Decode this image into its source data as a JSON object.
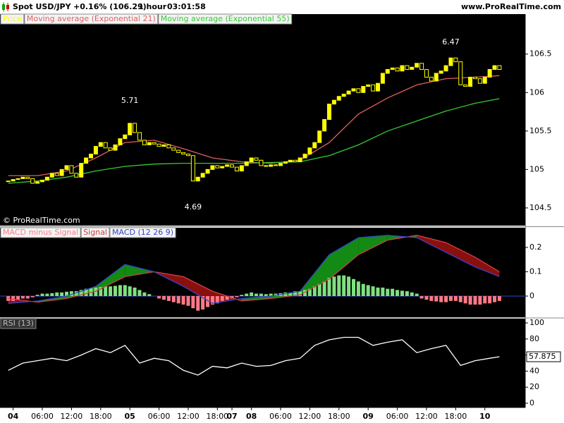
{
  "header": {
    "symbol": "Spot USD/JPY",
    "change": "+0.16% (106.29)",
    "period": "1 hour",
    "time": "03:01:58",
    "site": "www.ProRealTime.com"
  },
  "watermark": "© ProRealTime.com",
  "chart_data": [
    {
      "type": "candlestick",
      "series": [
        {
          "name": "Price",
          "color": "#ffff00",
          "values": [
            104.85,
            104.87,
            104.88,
            104.9,
            104.88,
            104.82,
            104.84,
            104.86,
            104.9,
            104.95,
            104.92,
            105.0,
            105.05,
            104.95,
            104.9,
            105.08,
            105.15,
            105.2,
            105.3,
            105.35,
            105.28,
            105.25,
            105.32,
            105.4,
            105.45,
            105.6,
            105.48,
            105.38,
            105.32,
            105.35,
            105.33,
            105.3,
            105.32,
            105.28,
            105.25,
            105.22,
            105.2,
            105.18,
            104.85,
            104.9,
            104.95,
            105.0,
            105.05,
            105.02,
            105.04,
            105.06,
            105.03,
            104.98,
            105.05,
            105.1,
            105.15,
            105.12,
            105.05,
            105.04,
            105.06,
            105.05,
            105.08,
            105.1,
            105.12,
            105.1,
            105.15,
            105.2,
            105.28,
            105.35,
            105.5,
            105.65,
            105.85,
            105.9,
            105.95,
            105.98,
            106.02,
            106.05,
            106.0,
            106.08,
            106.1,
            106.02,
            106.12,
            106.25,
            106.3,
            106.32,
            106.28,
            106.35,
            106.3,
            106.33,
            106.38,
            106.3,
            106.2,
            106.15,
            106.25,
            106.28,
            106.35,
            106.45,
            106.4,
            106.1,
            106.08,
            106.2,
            106.18,
            106.12,
            106.2,
            106.3,
            106.35,
            106.3
          ]
        },
        {
          "name": "Moving average (Exponential 21)",
          "color": "#e06060",
          "x": [
            0,
            6,
            12,
            18,
            24,
            30,
            36,
            42,
            48,
            54,
            60,
            66,
            72,
            78,
            84,
            90,
            96,
            101
          ],
          "values": [
            104.92,
            104.92,
            104.98,
            105.15,
            105.35,
            105.38,
            105.27,
            105.15,
            105.1,
            105.08,
            105.12,
            105.35,
            105.72,
            105.93,
            106.1,
            106.18,
            106.2,
            106.22
          ]
        },
        {
          "name": "Moving average (Exponential 55)",
          "color": "#33cc33",
          "x": [
            0,
            6,
            12,
            18,
            24,
            30,
            36,
            42,
            48,
            54,
            60,
            66,
            72,
            78,
            84,
            90,
            96,
            101
          ],
          "values": [
            104.82,
            104.85,
            104.9,
            104.98,
            105.04,
            105.07,
            105.08,
            105.08,
            105.08,
            105.09,
            105.1,
            105.18,
            105.32,
            105.5,
            105.63,
            105.76,
            105.86,
            105.92
          ]
        }
      ],
      "annotations": [
        {
          "text": "5.71",
          "x": 25,
          "y": 105.71,
          "position": "above"
        },
        {
          "text": "4.69",
          "x": 38,
          "y": 104.69,
          "position": "below"
        },
        {
          "text": "6.47",
          "x": 91,
          "y": 106.47,
          "position": "above"
        }
      ],
      "xlim": [
        -1.7,
        106.3
      ],
      "ylim": [
        104.27,
        107.02
      ],
      "yticks": [
        104.5,
        105,
        105.5,
        106,
        106.5
      ]
    },
    {
      "type": "macd",
      "series": [
        {
          "name": "MACD minus Signal",
          "style": "bar",
          "color": "#80e080",
          "negative_color": "#ff7a85",
          "values": [
            -0.02,
            -0.02,
            -0.015,
            -0.01,
            -0.01,
            -0.005,
            0.005,
            0.01,
            0.01,
            0.012,
            0.015,
            0.015,
            0.018,
            0.02,
            0.02,
            0.025,
            0.03,
            0.032,
            0.035,
            0.037,
            0.04,
            0.04,
            0.042,
            0.045,
            0.045,
            0.04,
            0.035,
            0.025,
            0.015,
            0.008,
            0.0,
            -0.01,
            -0.015,
            -0.02,
            -0.025,
            -0.03,
            -0.035,
            -0.04,
            -0.05,
            -0.06,
            -0.055,
            -0.045,
            -0.035,
            -0.03,
            -0.02,
            -0.015,
            -0.01,
            -0.005,
            0.005,
            0.01,
            0.015,
            0.01,
            0.01,
            0.008,
            0.01,
            0.01,
            0.012,
            0.015,
            0.015,
            0.02,
            0.02,
            0.025,
            0.03,
            0.04,
            0.05,
            0.06,
            0.075,
            0.08,
            0.085,
            0.085,
            0.08,
            0.07,
            0.06,
            0.05,
            0.045,
            0.04,
            0.035,
            0.035,
            0.03,
            0.03,
            0.025,
            0.022,
            0.02,
            0.015,
            0.01,
            -0.01,
            -0.015,
            -0.02,
            -0.022,
            -0.025,
            -0.025,
            -0.02,
            -0.02,
            -0.025,
            -0.03,
            -0.035,
            -0.035,
            -0.035,
            -0.03,
            -0.03,
            -0.025,
            -0.02
          ]
        },
        {
          "name": "Signal",
          "style": "line",
          "color": "#d04040",
          "x": [
            0,
            6,
            12,
            18,
            24,
            30,
            36,
            42,
            48,
            54,
            60,
            66,
            72,
            78,
            84,
            90,
            96,
            101
          ],
          "values": [
            -0.01,
            -0.025,
            -0.01,
            0.02,
            0.08,
            0.1,
            0.08,
            0.02,
            -0.02,
            -0.01,
            0.005,
            0.07,
            0.17,
            0.23,
            0.25,
            0.22,
            0.16,
            0.1
          ]
        },
        {
          "name": "MACD (12 26 9)",
          "style": "line",
          "color": "#3344cc",
          "x": [
            0,
            6,
            12,
            18,
            24,
            30,
            36,
            42,
            48,
            54,
            60,
            66,
            72,
            78,
            84,
            90,
            96,
            101
          ],
          "values": [
            -0.03,
            -0.02,
            0.0,
            0.04,
            0.13,
            0.1,
            0.04,
            -0.03,
            -0.01,
            0.0,
            0.02,
            0.17,
            0.24,
            0.25,
            0.24,
            0.18,
            0.12,
            0.08
          ]
        }
      ],
      "fill_up": "#138a13",
      "fill_down": "#8a1010",
      "zero_line_color": "#3344cc",
      "xlim": [
        -1.7,
        106.3
      ],
      "ylim": [
        -0.087,
        0.281
      ],
      "yticks": [
        0,
        0.1,
        0.2
      ]
    },
    {
      "type": "line",
      "series": [
        {
          "name": "RSI (13)",
          "color": "#ffffff",
          "x": [
            0,
            3,
            6,
            9,
            12,
            15,
            18,
            21,
            24,
            27,
            30,
            33,
            36,
            39,
            42,
            45,
            48,
            51,
            54,
            57,
            60,
            63,
            66,
            69,
            72,
            75,
            78,
            81,
            84,
            87,
            90,
            93,
            96,
            99,
            101
          ],
          "values": [
            41,
            50,
            53,
            56,
            53,
            60,
            68,
            63,
            72,
            50,
            56,
            53,
            41,
            35,
            46,
            44,
            50,
            46,
            47,
            53,
            56,
            72,
            79,
            82,
            82,
            72,
            76,
            79,
            63,
            68,
            72,
            47,
            53,
            56,
            57.875
          ]
        }
      ],
      "last_value_label": true,
      "xlim": [
        -1.7,
        106.3
      ],
      "ylim": [
        -5.3,
        105.3
      ],
      "yticks": [
        0,
        20,
        40,
        60,
        80,
        100
      ],
      "xticks": [
        {
          "value": 1,
          "label": "04"
        },
        {
          "value": 7,
          "label": "06:00"
        },
        {
          "value": 13,
          "label": "12:00"
        },
        {
          "value": 19,
          "label": "18:00"
        },
        {
          "value": 25,
          "label": "05"
        },
        {
          "value": 31,
          "label": "06:00"
        },
        {
          "value": 37,
          "label": "12:00"
        },
        {
          "value": 43,
          "label": "18:00"
        },
        {
          "value": 46,
          "label": "07"
        },
        {
          "value": 50,
          "label": "08"
        },
        {
          "value": 56,
          "label": "06:00"
        },
        {
          "value": 62,
          "label": "12:00"
        },
        {
          "value": 68,
          "label": "18:00"
        },
        {
          "value": 74,
          "label": "09"
        },
        {
          "value": 80,
          "label": "06:00"
        },
        {
          "value": 86,
          "label": "12:00"
        },
        {
          "value": 92,
          "label": "18:00"
        },
        {
          "value": 98,
          "label": "10"
        }
      ]
    }
  ]
}
